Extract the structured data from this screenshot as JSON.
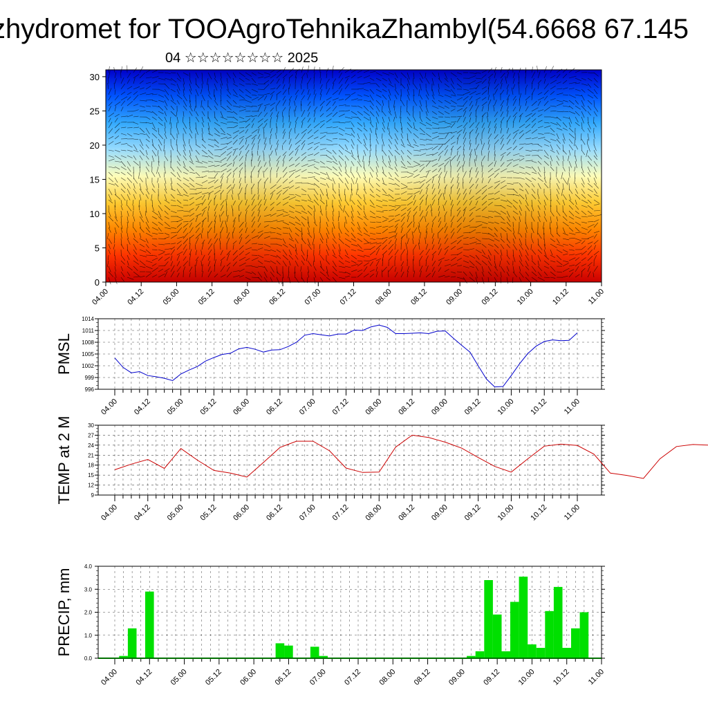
{
  "page": {
    "title": "zhydromet for TOOAgroTehnikaZhambyl(54.6668 67.145",
    "subtitle": "04 ☆☆☆☆☆☆☆☆ 2025"
  },
  "colors": {
    "pmsl_line": "#0000cc",
    "temp_line": "#cc0000",
    "precip_bar": "#00e000",
    "grid": "#000000"
  },
  "chart_data": [
    {
      "type": "heatmap",
      "title": "",
      "xlabel": "",
      "ylabel": "",
      "x_tick_labels": [
        "04.00",
        "04.12",
        "05.00",
        "05.12",
        "06.00",
        "06.12",
        "07.00",
        "07.12",
        "08.00",
        "08.12",
        "09.00",
        "09.12",
        "10.00",
        "10.12",
        "11.00"
      ],
      "y_ticks": [
        0,
        5,
        10,
        15,
        20,
        25,
        30
      ],
      "ylim": [
        0,
        31
      ],
      "color_scale": [
        "#cc0000",
        "#ff3300",
        "#ff8800",
        "#ffcc33",
        "#ffffbb",
        "#99ddff",
        "#33aaff",
        "#0055ff",
        "#0000cc"
      ],
      "overlay": "wind vectors",
      "grid": false
    },
    {
      "type": "line",
      "ylabel": "PMSL",
      "x_tick_labels": [
        "04.00",
        "04.12",
        "05.00",
        "05.12",
        "06.00",
        "06.12",
        "07.00",
        "07.12",
        "08.00",
        "08.12",
        "09.00",
        "09.12",
        "10.00",
        "10.12",
        "11.00"
      ],
      "y_ticks": [
        996,
        999,
        1002,
        1005,
        1008,
        1011,
        1014
      ],
      "ylim": [
        996,
        1014
      ],
      "x_step_hours": 3,
      "series": [
        {
          "values": [
            1004,
            1001.6,
            1000.2,
            1000.5,
            999.5,
            999.2,
            998.8,
            998.2,
            999.9,
            1000.9,
            1001.8,
            1003.2,
            1004.1,
            1004.9,
            1005.2,
            1006.3,
            1006.7,
            1006.2,
            1005.5,
            1006,
            1006.1,
            1006.9,
            1008,
            1009.8,
            1010.2,
            1009.9,
            1009.6,
            1010.1,
            1010.1,
            1011.1,
            1011,
            1011.9,
            1012.4,
            1011.8,
            1010.2,
            1010.2,
            1010.3,
            1010.4,
            1010.2,
            1010.8,
            1010.9,
            1009,
            1007.2,
            1005.5,
            1002,
            998.6,
            996.6,
            996.7,
            999.5,
            1002.5,
            1005.1,
            1007,
            1008.2,
            1008.6,
            1008.4,
            1008.5,
            1010.4
          ]
        }
      ],
      "grid": true
    },
    {
      "type": "line",
      "ylabel": "TEMP at 2 M",
      "x_tick_labels": [
        "04.00",
        "04.12",
        "05.00",
        "05.12",
        "06.00",
        "06.12",
        "07.00",
        "07.12",
        "08.00",
        "08.12",
        "09.00",
        "09.12",
        "10.00",
        "10.12",
        "11.00"
      ],
      "y_ticks": [
        9,
        12,
        15,
        18,
        21,
        24,
        27,
        30
      ],
      "ylim": [
        9,
        30
      ],
      "x_step_hours": 6,
      "series": [
        {
          "values": [
            16.6,
            18.3,
            19.7,
            17,
            23,
            19.5,
            16.4,
            15.6,
            14.4,
            18.8,
            23.3,
            25.2,
            25.2,
            22.3,
            17.1,
            15.8,
            15.9,
            23.4,
            27,
            26.3,
            24.9,
            23.1,
            20.3,
            17.6,
            15.9,
            19.9,
            23.7,
            24.3,
            23.9,
            21.3,
            15.6,
            14.9,
            14,
            19.9,
            23.6,
            24.2,
            24,
            21.1,
            16.5,
            15.6,
            14.8,
            19.6,
            19.3,
            18.6,
            18.5,
            18.5,
            17.6,
            15.9,
            15.3,
            14,
            14.2,
            15.1,
            15.9,
            15.6,
            13.8,
            12.7,
            11.9
          ]
        }
      ],
      "grid": true
    },
    {
      "type": "bar",
      "ylabel": "PRECIP, mm",
      "x_tick_labels": [
        "04.00",
        "04.12",
        "05.00",
        "05.12",
        "06.00",
        "06.12",
        "07.00",
        "07.12",
        "08.00",
        "08.12",
        "09.00",
        "09.12",
        "10.00",
        "10.12",
        "11.00"
      ],
      "y_tick_labels": [
        "0.0",
        "1.0",
        "2.0",
        "3.0",
        "4.0"
      ],
      "ylim": [
        0,
        4
      ],
      "x_step_hours": 3,
      "values": [
        0,
        0.1,
        1.3,
        0,
        2.9,
        0,
        0,
        0,
        0,
        0,
        0,
        0,
        0,
        0,
        0,
        0,
        0,
        0,
        0,
        0.65,
        0.55,
        0,
        0,
        0.5,
        0.1,
        0,
        0,
        0,
        0,
        0,
        0,
        0,
        0,
        0,
        0,
        0,
        0,
        0,
        0,
        0,
        0,
        0.1,
        0.3,
        3.4,
        1.9,
        0.3,
        2.45,
        3.55,
        0.6,
        0.45,
        2.05,
        3.1,
        0.45,
        1.3,
        2.0,
        0
      ],
      "grid": true
    }
  ]
}
